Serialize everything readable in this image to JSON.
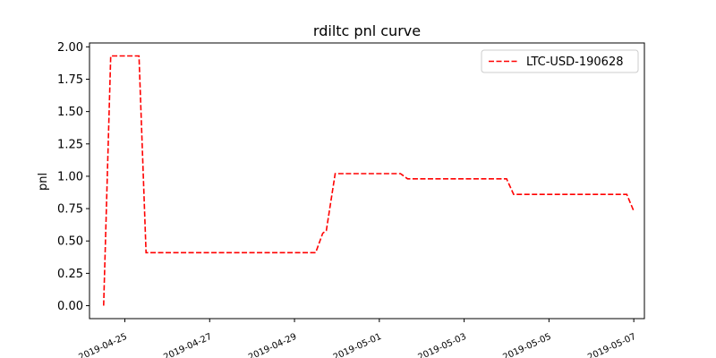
{
  "chart_data": {
    "type": "line",
    "title": "rdiltc pnl curve",
    "xlabel": "",
    "ylabel": "pnl",
    "x_axis_type": "date",
    "xlim": [
      "2019-04-24T04:00",
      "2019-05-07T06:00"
    ],
    "ylim": [
      -0.1,
      2.03
    ],
    "x_ticks": [
      "2019-04-25",
      "2019-04-27",
      "2019-04-29",
      "2019-05-01",
      "2019-05-03",
      "2019-05-05",
      "2019-05-07"
    ],
    "x_tick_labels": [
      "2019-04-25",
      "2019-04-27",
      "2019-04-29",
      "2019-05-01",
      "2019-05-03",
      "2019-05-05",
      "2019-05-07"
    ],
    "y_ticks": [
      0.0,
      0.25,
      0.5,
      0.75,
      1.0,
      1.25,
      1.5,
      1.75,
      2.0
    ],
    "y_tick_labels": [
      "0.00",
      "0.25",
      "0.50",
      "0.75",
      "1.00",
      "1.25",
      "1.50",
      "1.75",
      "2.00"
    ],
    "grid": false,
    "legend_position": "top-right",
    "series": [
      {
        "name": "LTC-USD-190628",
        "color": "#ff0000",
        "style": "dashed",
        "x": [
          "2019-04-24T12:00",
          "2019-04-24T16:00",
          "2019-04-25T04:00",
          "2019-04-25T08:00",
          "2019-04-25T12:00",
          "2019-04-28T06:00",
          "2019-04-29T12:00",
          "2019-04-29T16:00",
          "2019-04-29T18:00",
          "2019-04-29T23:00",
          "2019-04-30T06:00",
          "2019-05-01T12:00",
          "2019-05-01T16:00",
          "2019-05-02T08:00",
          "2019-05-03T18:00",
          "2019-05-04T00:00",
          "2019-05-04T04:00",
          "2019-05-05T12:00",
          "2019-05-06T12:00",
          "2019-05-06T20:00",
          "2019-05-07T00:00"
        ],
        "y": [
          0.0,
          1.93,
          1.93,
          1.93,
          0.41,
          0.41,
          0.41,
          0.56,
          0.58,
          1.02,
          1.02,
          1.02,
          0.98,
          0.98,
          0.98,
          0.98,
          0.86,
          0.86,
          0.86,
          0.86,
          0.73
        ]
      }
    ]
  }
}
